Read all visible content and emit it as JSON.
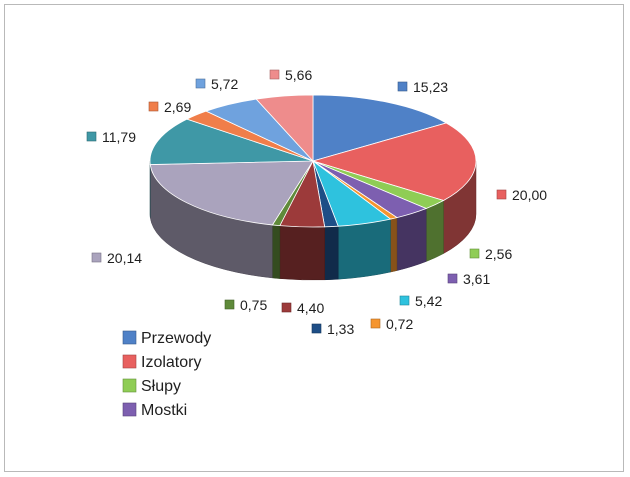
{
  "chart_data": {
    "type": "pie",
    "title": "",
    "style": "3d",
    "legend_position": "bottom-left",
    "slices": [
      {
        "label": "15,23",
        "value": 15.23,
        "color": "#4f81c7"
      },
      {
        "label": "20,00",
        "value": 20.0,
        "color": "#e8605f"
      },
      {
        "label": "2,56",
        "value": 2.56,
        "color": "#8fcd55"
      },
      {
        "label": "3,61",
        "value": 3.61,
        "color": "#7d5fb0"
      },
      {
        "label": "0,72",
        "value": 0.72,
        "color": "#f5952f"
      },
      {
        "label": "5,42",
        "value": 5.42,
        "color": "#2ec2de"
      },
      {
        "label": "1,33",
        "value": 1.33,
        "color": "#1e4e86"
      },
      {
        "label": "4,40",
        "value": 4.4,
        "color": "#9c3a3a"
      },
      {
        "label": "0,75",
        "value": 0.75,
        "color": "#5f8a3a"
      },
      {
        "label": "20,14",
        "value": 20.14,
        "color": "#aaa3bd"
      },
      {
        "label": "11,79",
        "value": 11.79,
        "color": "#3f98a6"
      },
      {
        "label": "2,69",
        "value": 2.69,
        "color": "#f07e4a"
      },
      {
        "label": "5,72",
        "value": 5.72,
        "color": "#6fa2de"
      },
      {
        "label": "5,66",
        "value": 5.66,
        "color": "#ee8c8c"
      }
    ],
    "legend": [
      {
        "name": "Przewody",
        "color": "#4f81c7"
      },
      {
        "name": "Izolatory",
        "color": "#e8605f"
      },
      {
        "name": "Słupy",
        "color": "#8fcd55"
      },
      {
        "name": "Mostki",
        "color": "#7d5fb0"
      }
    ]
  }
}
